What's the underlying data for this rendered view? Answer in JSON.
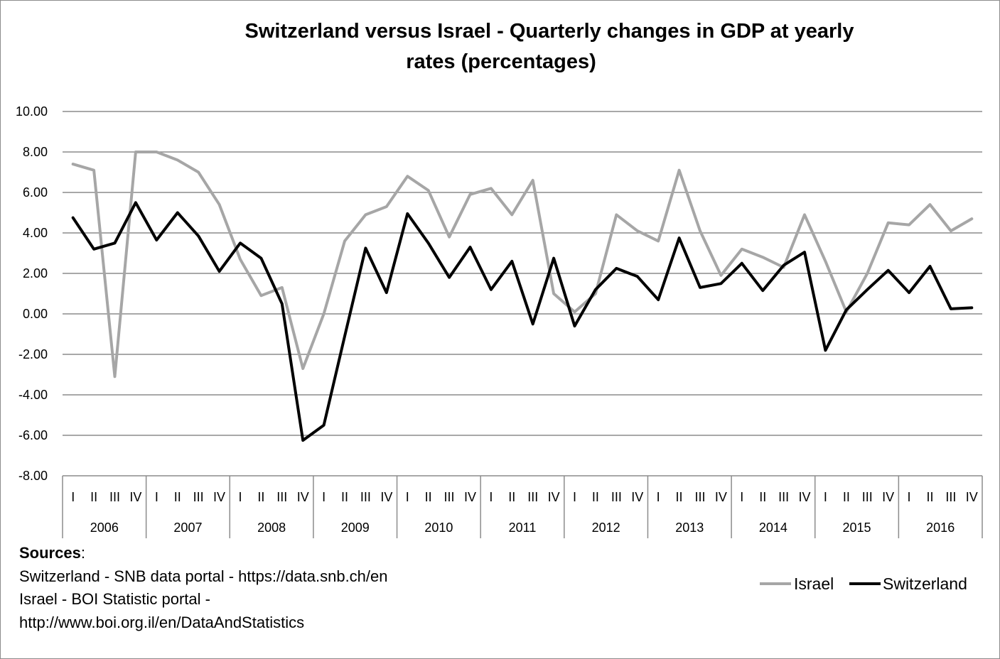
{
  "chart_data": {
    "type": "line",
    "title_lines": [
      "Switzerland versus Israel - Quarterly changes in GDP at yearly",
      "rates (percentages)"
    ],
    "y_ticks": [
      "10.00",
      "8.00",
      "6.00",
      "4.00",
      "2.00",
      "0.00",
      "-2.00",
      "-4.00",
      "-6.00",
      "-8.00"
    ],
    "ylim": [
      -8,
      10
    ],
    "years": [
      "2006",
      "2007",
      "2008",
      "2009",
      "2010",
      "2011",
      "2012",
      "2013",
      "2014",
      "2015",
      "2016"
    ],
    "quarters": [
      "I",
      "II",
      "III",
      "IV"
    ],
    "series": [
      {
        "name": "Israel",
        "color": "#a6a6a6",
        "values": [
          7.4,
          7.1,
          -3.1,
          8.0,
          8.0,
          7.6,
          7.0,
          5.4,
          2.7,
          0.9,
          1.3,
          -2.7,
          0.0,
          3.6,
          4.9,
          5.3,
          6.8,
          6.1,
          3.8,
          5.9,
          6.2,
          4.9,
          6.6,
          1.0,
          0.1,
          1.0,
          4.9,
          4.1,
          3.6,
          7.1,
          4.1,
          1.9,
          3.2,
          2.8,
          2.3,
          4.9,
          2.6,
          0.1,
          2.0,
          4.5,
          4.4,
          5.4,
          4.1,
          4.7
        ]
      },
      {
        "name": "Switzerland",
        "color": "#000000",
        "values": [
          4.75,
          3.2,
          3.5,
          5.5,
          3.65,
          5.0,
          3.85,
          2.1,
          3.5,
          2.75,
          0.5,
          -6.25,
          -5.5,
          -1.1,
          3.25,
          1.05,
          4.95,
          3.5,
          1.8,
          3.3,
          1.2,
          2.6,
          -0.5,
          2.75,
          -0.6,
          1.2,
          2.25,
          1.85,
          0.7,
          3.75,
          1.3,
          1.5,
          2.5,
          1.15,
          2.4,
          3.05,
          -1.8,
          0.2,
          1.2,
          2.15,
          1.05,
          2.35,
          0.25,
          0.3
        ]
      }
    ]
  },
  "sources": {
    "heading": "Sources",
    "heading_suffix": ":",
    "lines": [
      "Switzerland - SNB data portal - https://data.snb.ch/en",
      "Israel - BOI Statistic portal -",
      "http://www.boi.org.il/en/DataAndStatistics"
    ]
  }
}
